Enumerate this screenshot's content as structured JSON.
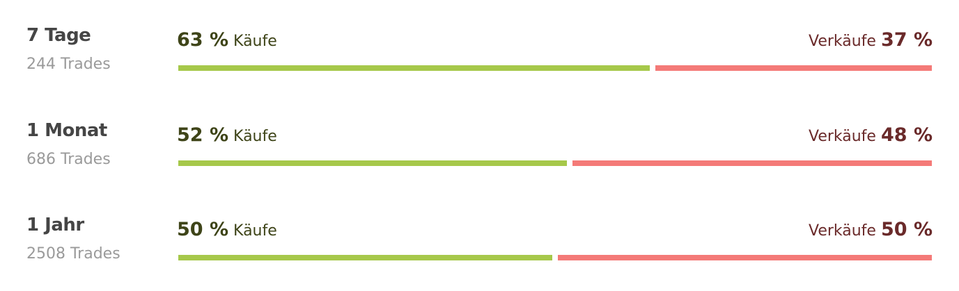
{
  "colors": {
    "buy": "#a6c84a",
    "sell": "#f47a78"
  },
  "rows": [
    {
      "period": "7 Tage",
      "trades": "244 Trades",
      "buy_pct": "63 %",
      "buy_label": "Käufe",
      "sell_label": "Verkäufe",
      "sell_pct": "37 %",
      "buy_value": 63
    },
    {
      "period": "1 Monat",
      "trades": "686 Trades",
      "buy_pct": "52 %",
      "buy_label": "Käufe",
      "sell_label": "Verkäufe",
      "sell_pct": "48 %",
      "buy_value": 52
    },
    {
      "period": "1 Jahr",
      "trades": "2508 Trades",
      "buy_pct": "50 %",
      "buy_label": "Käufe",
      "sell_label": "Verkäufe",
      "sell_pct": "50 %",
      "buy_value": 50
    }
  ]
}
